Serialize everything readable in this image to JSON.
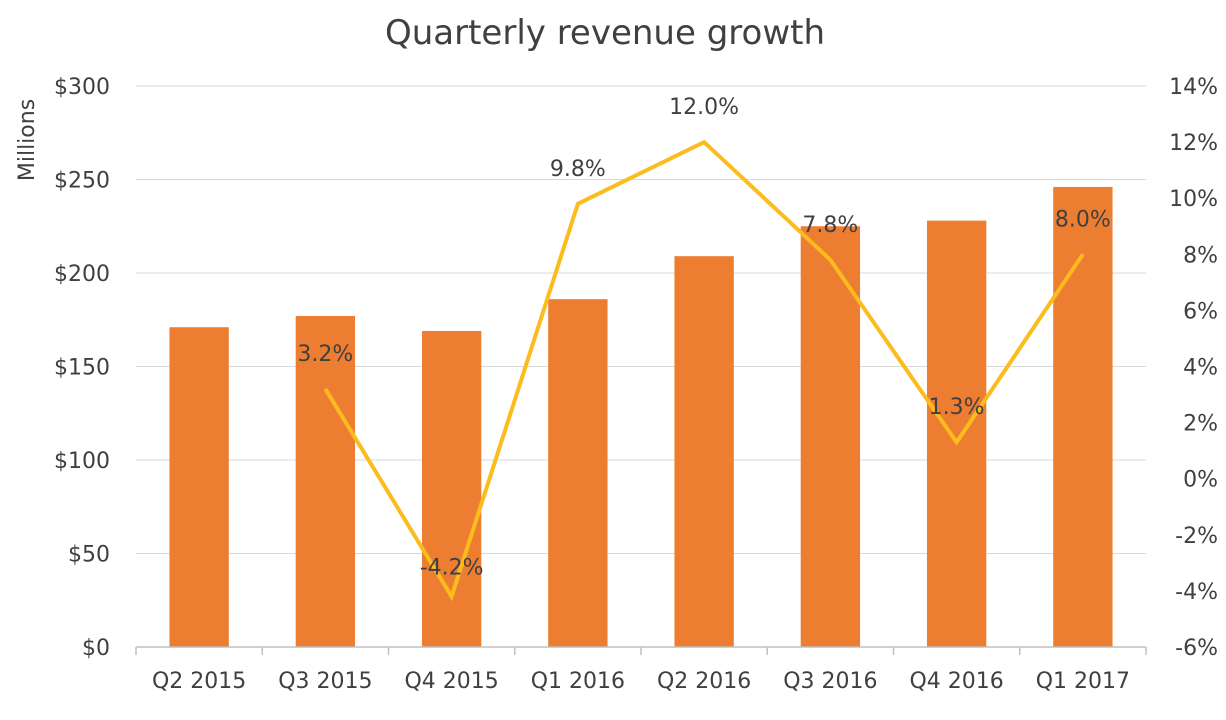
{
  "chart_data": {
    "type": "bar",
    "title": "Quarterly revenue growth",
    "ylabel": "Millions",
    "categories": [
      "Q2 2015",
      "Q3 2015",
      "Q4 2015",
      "Q1 2016",
      "Q2 2016",
      "Q3 2016",
      "Q4 2016",
      "Q1 2017"
    ],
    "series": [
      {
        "type": "bar",
        "axis": "left",
        "color": "#ED7D31",
        "values": [
          171,
          177,
          169,
          186,
          209,
          225,
          228,
          246
        ]
      },
      {
        "type": "line",
        "axis": "right",
        "color": "#FBBC1E",
        "values": [
          null,
          3.2,
          -4.2,
          9.8,
          12.0,
          7.8,
          1.3,
          8.0
        ],
        "labels": [
          null,
          "3.2%",
          "-4.2%",
          "9.8%",
          "12.0%",
          "7.8%",
          "1.3%",
          "8.0%"
        ]
      }
    ],
    "y_left": {
      "ylim": [
        0,
        300
      ],
      "ticks": [
        0,
        50,
        100,
        150,
        200,
        250,
        300
      ],
      "tick_labels": [
        "$0",
        "$50",
        "$100",
        "$150",
        "$200",
        "$250",
        "$300"
      ]
    },
    "y_right": {
      "ylim": [
        -6,
        14
      ],
      "ticks": [
        -6,
        -4,
        -2,
        0,
        2,
        4,
        6,
        8,
        10,
        12,
        14
      ],
      "tick_labels": [
        "-6%",
        "-4%",
        "-2%",
        "0%",
        "2%",
        "4%",
        "6%",
        "8%",
        "10%",
        "12%",
        "14%"
      ]
    },
    "grid": true,
    "legend": "none"
  }
}
